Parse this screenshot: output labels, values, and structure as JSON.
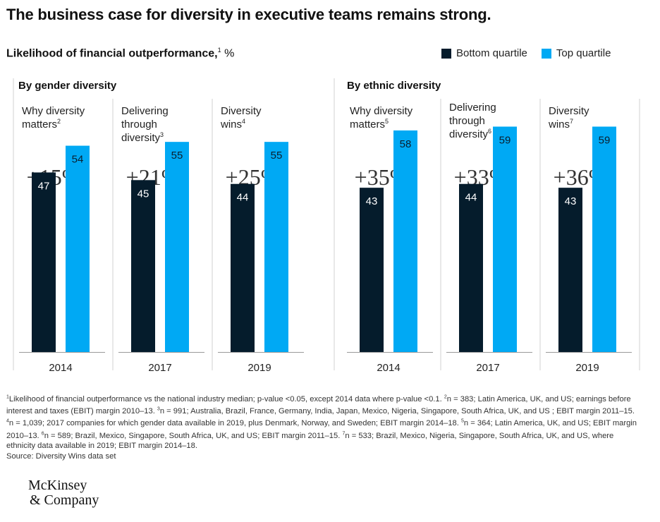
{
  "title": "The business case for diversity in executive teams remains strong.",
  "subtitle": {
    "text": "Likelihood of financial outperformance,",
    "sup": "1",
    "unit": "%"
  },
  "legend": [
    {
      "label": "Bottom quartile",
      "color": "#051c2c"
    },
    {
      "label": "Top quartile",
      "color": "#00a9f4"
    }
  ],
  "colors": {
    "bottom": "#051c2c",
    "top": "#00a9f4",
    "divider": "#d0d0d0",
    "delta": "#333333"
  },
  "chart_data": {
    "type": "bar",
    "ylim": [
      0,
      65
    ],
    "series_names": [
      "Bottom quartile",
      "Top quartile"
    ],
    "groups": [
      {
        "title": "By gender diversity",
        "panels": [
          {
            "label_lines": [
              "Why diversity",
              "matters"
            ],
            "sup": "2",
            "delta": "+15%",
            "year": "2014",
            "bottom": 47,
            "top": 54
          },
          {
            "label_lines": [
              "Delivering",
              "through",
              "diversity"
            ],
            "sup": "3",
            "delta": "+21%",
            "year": "2017",
            "bottom": 45,
            "top": 55
          },
          {
            "label_lines": [
              "Diversity",
              "wins"
            ],
            "sup": "4",
            "delta": "+25%",
            "year": "2019",
            "bottom": 44,
            "top": 55
          }
        ]
      },
      {
        "title": "By ethnic diversity",
        "panels": [
          {
            "label_lines": [
              "Why diversity",
              "matters"
            ],
            "sup": "5",
            "delta": "+35%",
            "year": "2014",
            "bottom": 43,
            "top": 58
          },
          {
            "label_lines": [
              "Delivering",
              "through",
              "diversity"
            ],
            "sup": "6",
            "delta": "+33%",
            "year": "2017",
            "bottom": 44,
            "top": 59
          },
          {
            "label_lines": [
              "Diversity",
              "wins"
            ],
            "sup": "7",
            "delta": "+36%",
            "year": "2019",
            "bottom": 43,
            "top": 59
          }
        ]
      }
    ]
  },
  "footnotes": [
    {
      "sup": "1",
      "text": "Likelihood of financial outperformance vs the national industry median; p-value <0.05, except 2014 data where p-value <0.1. "
    },
    {
      "sup": "2",
      "text": "n = 383; Latin America, UK, and US; earnings before interest and taxes (EBIT) margin 2010–13. "
    },
    {
      "sup": "3",
      "text": "n = 991; Australia, Brazil, France, Germany, India, Japan, Mexico, Nigeria, Singapore, South Africa, UK, and US ; EBIT margin 2011–15. "
    },
    {
      "sup": "4",
      "text": "n = 1,039; 2017 companies for which gender data available in 2019, plus Denmark, Norway, and Sweden;  EBIT margin 2014–18. "
    },
    {
      "sup": "5",
      "text": "n = 364; Latin America, UK, and US; EBIT margin 2010–13. "
    },
    {
      "sup": "6",
      "text": "n = 589; Brazil, Mexico, Singapore, South Africa, UK, and US; EBIT margin 2011–15. "
    },
    {
      "sup": "7",
      "text": "n = 533; Brazil, Mexico, Nigeria, Singapore, South Africa, UK, and US, where ethnicity data available in 2019; EBIT margin 2014–18."
    }
  ],
  "source": "Source: Diversity Wins data set",
  "logo": {
    "line1": "McKinsey",
    "line2": "& Company"
  }
}
